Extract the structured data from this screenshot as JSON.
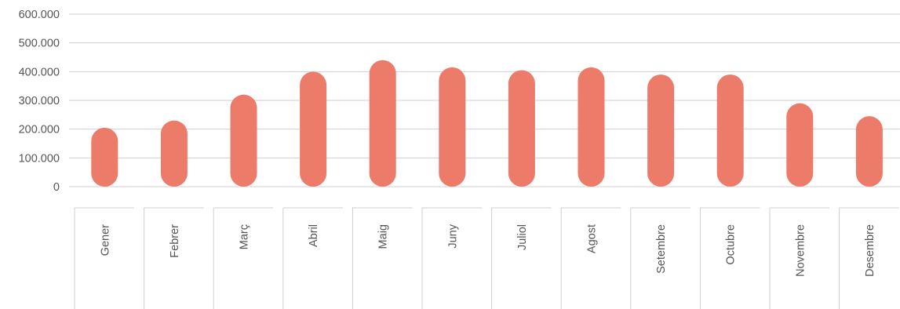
{
  "chart_data": {
    "type": "bar",
    "title": "",
    "xlabel": "",
    "ylabel": "",
    "categories": [
      "Gener",
      "Febrer",
      "Març",
      "Abril",
      "Maig",
      "Juny",
      "Juliol",
      "Agost",
      "Setembre",
      "Octubre",
      "Novembre",
      "Desembre"
    ],
    "values": [
      205000,
      230000,
      320000,
      400000,
      440000,
      415000,
      405000,
      415000,
      390000,
      390000,
      290000,
      245000
    ],
    "ylim": [
      0,
      600000
    ],
    "yticks": [
      0,
      100000,
      200000,
      300000,
      400000,
      500000,
      600000
    ],
    "ytick_labels": [
      "0",
      "100.000",
      "200.000",
      "300.000",
      "400.000",
      "500.000",
      "600.000"
    ],
    "grid": true,
    "legend": "none",
    "bar_color": "#ec7b6a"
  }
}
